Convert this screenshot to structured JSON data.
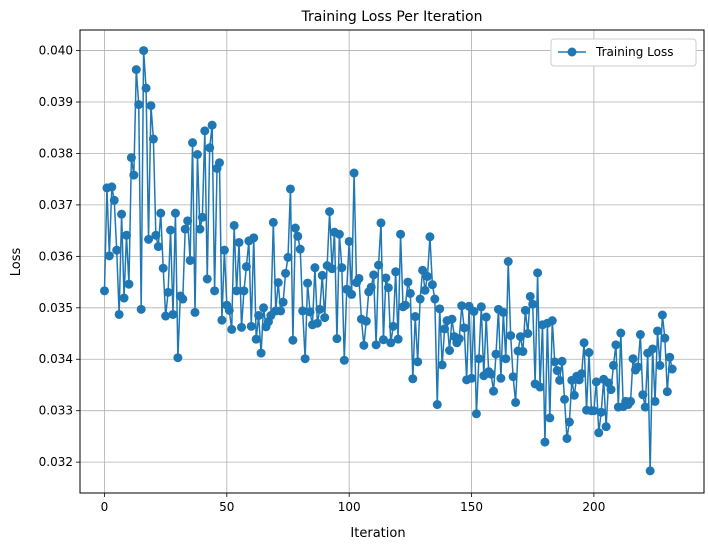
{
  "chart_data": {
    "type": "line",
    "title": "Training Loss Per Iteration",
    "xlabel": "Iteration",
    "ylabel": "Loss",
    "xlim": [
      -10,
      245
    ],
    "ylim": [
      0.0314,
      0.0404
    ],
    "xticks": [
      0,
      50,
      100,
      150,
      200
    ],
    "xtick_labels": [
      "0",
      "50",
      "100",
      "150",
      "200"
    ],
    "yticks": [
      0.032,
      0.033,
      0.034,
      0.035,
      0.036,
      0.037,
      0.038,
      0.039,
      0.04
    ],
    "ytick_labels": [
      "0.032",
      "0.033",
      "0.034",
      "0.035",
      "0.036",
      "0.037",
      "0.038",
      "0.039",
      "0.040"
    ],
    "grid": true,
    "legend_position": "top-right",
    "color": "#1f77b4",
    "series": [
      {
        "name": "Training Loss",
        "x_start": 0,
        "x_step": 1,
        "values": [
          0.03533,
          0.03733,
          0.03601,
          0.03735,
          0.03709,
          0.03612,
          0.03487,
          0.03682,
          0.03519,
          0.03641,
          0.03546,
          0.03792,
          0.03758,
          0.03963,
          0.03895,
          0.03497,
          0.04,
          0.03927,
          0.03633,
          0.03893,
          0.03828,
          0.03641,
          0.03619,
          0.03684,
          0.03577,
          0.03484,
          0.0353,
          0.03651,
          0.03487,
          0.03684,
          0.03403,
          0.03523,
          0.03517,
          0.03653,
          0.03669,
          0.03592,
          0.03821,
          0.03491,
          0.03798,
          0.03653,
          0.03676,
          0.03844,
          0.03556,
          0.03811,
          0.03855,
          0.03533,
          0.03771,
          0.03782,
          0.03476,
          0.03612,
          0.03505,
          0.03495,
          0.03458,
          0.0366,
          0.03533,
          0.03627,
          0.03462,
          0.03533,
          0.0358,
          0.0363,
          0.03464,
          0.03636,
          0.03439,
          0.03485,
          0.03412,
          0.035,
          0.03463,
          0.03473,
          0.03485,
          0.03666,
          0.03494,
          0.03549,
          0.03494,
          0.03511,
          0.03567,
          0.03598,
          0.03731,
          0.03437,
          0.03655,
          0.03639,
          0.03614,
          0.03494,
          0.03401,
          0.03548,
          0.03492,
          0.03467,
          0.03578,
          0.0347,
          0.03497,
          0.03563,
          0.03481,
          0.03582,
          0.03687,
          0.03576,
          0.03647,
          0.0344,
          0.03643,
          0.03578,
          0.03398,
          0.03536,
          0.03629,
          0.03526,
          0.03762,
          0.03549,
          0.03557,
          0.03478,
          0.03427,
          0.03474,
          0.03531,
          0.0354,
          0.03564,
          0.03428,
          0.03583,
          0.03665,
          0.03438,
          0.03558,
          0.03539,
          0.03432,
          0.03464,
          0.0357,
          0.03439,
          0.03643,
          0.03502,
          0.03505,
          0.0355,
          0.03528,
          0.03362,
          0.03483,
          0.03395,
          0.03517,
          0.03573,
          0.03534,
          0.03561,
          0.03638,
          0.03545,
          0.03517,
          0.03312,
          0.03498,
          0.03389,
          0.03459,
          0.03475,
          0.03417,
          0.03478,
          0.03444,
          0.03432,
          0.0344,
          0.03504,
          0.03461,
          0.0336,
          0.03503,
          0.03363,
          0.03493,
          0.03294,
          0.03401,
          0.03502,
          0.03368,
          0.03482,
          0.03376,
          0.03371,
          0.03338,
          0.0341,
          0.03497,
          0.03363,
          0.03491,
          0.03401,
          0.0359,
          0.03446,
          0.03366,
          0.03316,
          0.03416,
          0.03444,
          0.03415,
          0.03495,
          0.0345,
          0.03522,
          0.03507,
          0.03352,
          0.03568,
          0.03346,
          0.03467,
          0.03239,
          0.0347,
          0.03286,
          0.03475,
          0.03395,
          0.03378,
          0.03359,
          0.03396,
          0.03322,
          0.03246,
          0.03278,
          0.03359,
          0.0333,
          0.03367,
          0.0336,
          0.03372,
          0.03432,
          0.03301,
          0.03413,
          0.033,
          0.033,
          0.03356,
          0.03257,
          0.03297,
          0.03361,
          0.03269,
          0.03354,
          0.03341,
          0.03388,
          0.03428,
          0.03307,
          0.03451,
          0.03308,
          0.03318,
          0.03312,
          0.03318,
          0.03401,
          0.03379,
          0.03385,
          0.03448,
          0.03331,
          0.03307,
          0.03412,
          0.03183,
          0.0342,
          0.03318,
          0.03455,
          0.03388,
          0.03486,
          0.03441,
          0.03337,
          0.03404,
          0.03381
        ]
      }
    ]
  }
}
